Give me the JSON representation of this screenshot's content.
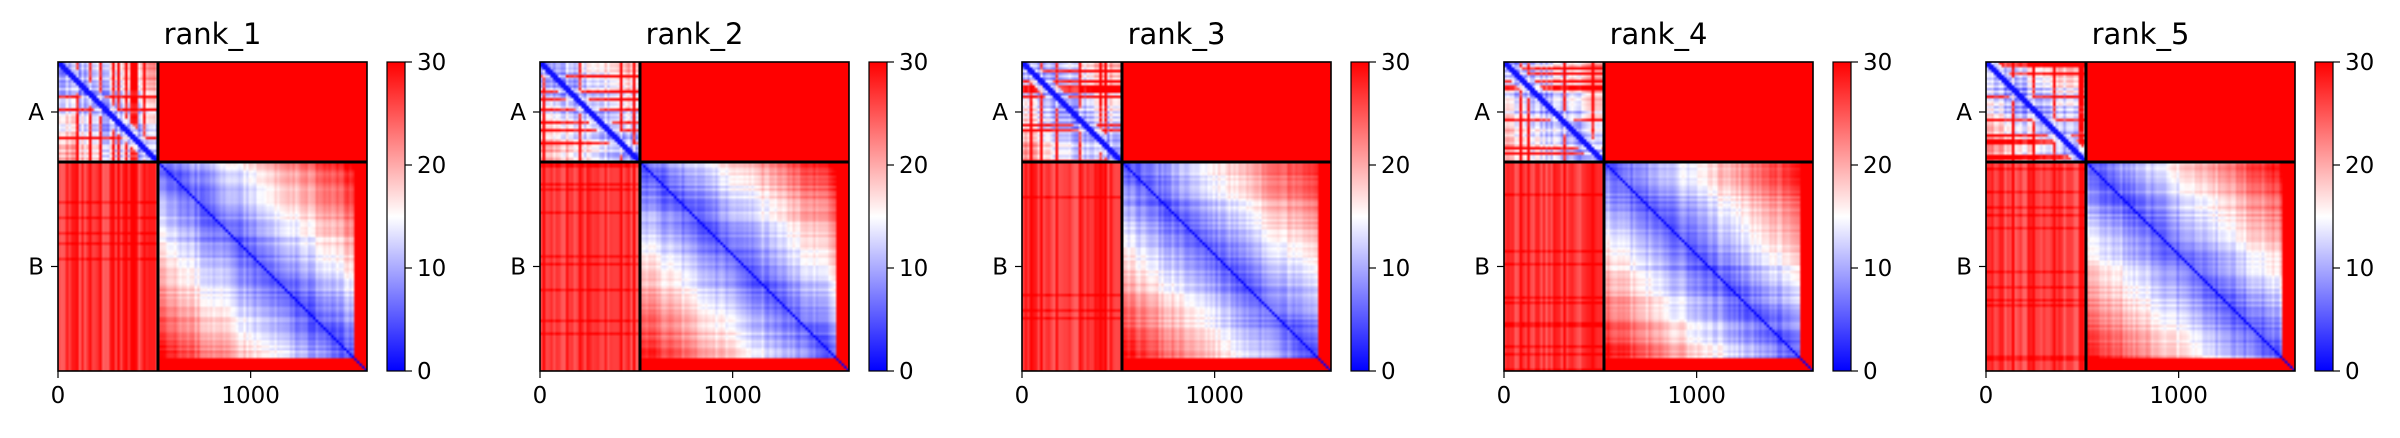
{
  "chart_data": {
    "type": "heatmap",
    "layout": "1x5 subplots",
    "colormap": [
      "#0000ff",
      "#ffffff",
      "#ff0000"
    ],
    "colorbar": {
      "min": 0,
      "max": 30,
      "ticks": [
        0,
        10,
        20,
        30
      ]
    },
    "x_range": [
      0,
      1604
    ],
    "x_ticks": [
      0,
      1000
    ],
    "chain_boundary": 519,
    "chains": [
      {
        "label": "A",
        "start": 0,
        "end": 519
      },
      {
        "label": "B",
        "start": 519,
        "end": 1604
      }
    ],
    "block_means": {
      "A-A": 10,
      "A-B": 30,
      "B-A": 27,
      "B-B": 12
    },
    "grid": false,
    "panels": [
      {
        "title": "rank_1"
      },
      {
        "title": "rank_2"
      },
      {
        "title": "rank_3"
      },
      {
        "title": "rank_4"
      },
      {
        "title": "rank_5"
      }
    ]
  }
}
